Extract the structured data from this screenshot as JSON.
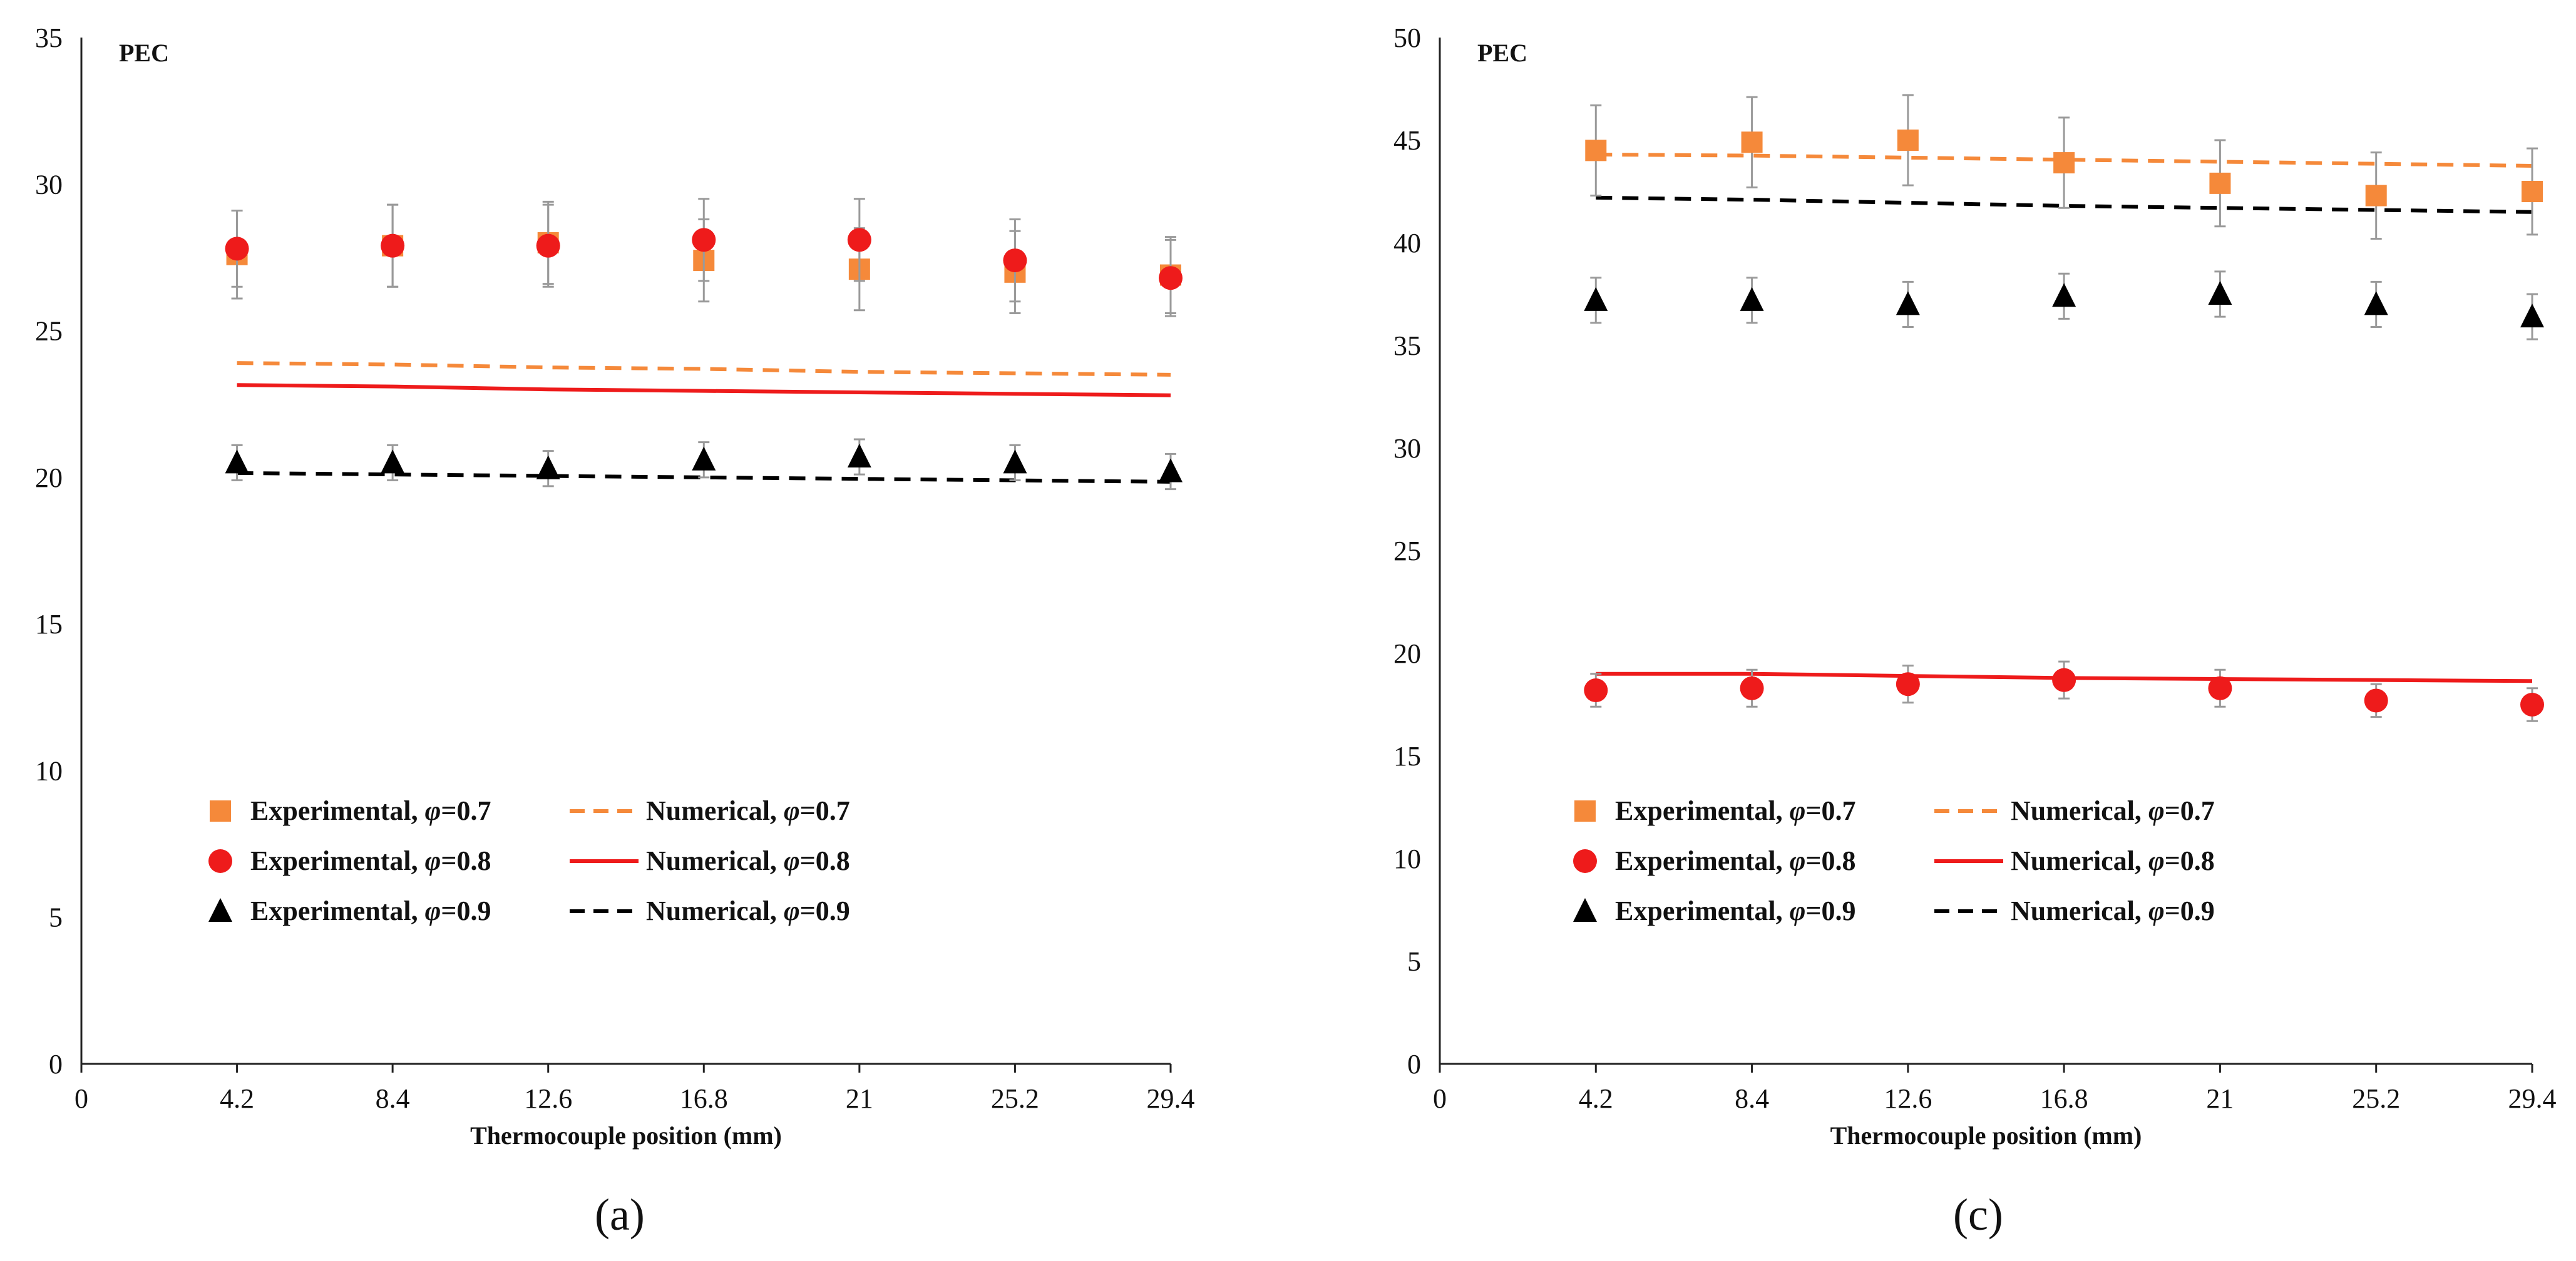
{
  "chart_data": [
    {
      "type": "line",
      "panel": "a",
      "caption": "(a)",
      "ylabel": "PEC",
      "xlabel": "Thermocouple position (mm)",
      "ylim": [
        0,
        35
      ],
      "yticks": [
        0,
        5,
        10,
        15,
        20,
        25,
        30,
        35
      ],
      "x_tick_values": [
        0,
        4.2,
        8.4,
        12.6,
        16.8,
        21,
        25.2,
        29.4
      ],
      "x_tick_labels": [
        "0",
        "4.2",
        "8.4",
        "12.6",
        "16.8",
        "21",
        "25.2",
        "29.4"
      ],
      "xlim": [
        0,
        29.4
      ],
      "legend_position": "lower-center",
      "series": [
        {
          "name": "Experimental, φ=0.7",
          "label_prefix": "Experimental, ",
          "phi": "0.7",
          "kind": "scatter",
          "marker": "square",
          "color": "#f5893a",
          "x": [
            4.2,
            8.4,
            12.6,
            16.8,
            21,
            25.2,
            29.4
          ],
          "values": [
            27.6,
            27.9,
            28.0,
            27.4,
            27.1,
            27.0,
            26.9
          ],
          "errors": [
            1.5,
            1.4,
            1.4,
            1.4,
            1.4,
            1.4,
            1.3
          ]
        },
        {
          "name": "Experimental, φ=0.8",
          "label_prefix": "Experimental, ",
          "phi": "0.8",
          "kind": "scatter",
          "marker": "circle",
          "color": "#ee1b1b",
          "x": [
            4.2,
            8.4,
            12.6,
            16.8,
            21,
            25.2,
            29.4
          ],
          "values": [
            27.8,
            27.9,
            27.9,
            28.1,
            28.1,
            27.4,
            26.8
          ],
          "errors": [
            1.3,
            1.4,
            1.4,
            1.4,
            1.4,
            1.4,
            1.3
          ]
        },
        {
          "name": "Experimental, φ=0.9",
          "label_prefix": "Experimental, ",
          "phi": "0.9",
          "kind": "scatter",
          "marker": "triangle",
          "color": "#000000",
          "x": [
            4.2,
            8.4,
            12.6,
            16.8,
            21,
            25.2,
            29.4
          ],
          "values": [
            20.5,
            20.5,
            20.3,
            20.6,
            20.7,
            20.5,
            20.2
          ],
          "errors": [
            0.6,
            0.6,
            0.6,
            0.6,
            0.6,
            0.6,
            0.6
          ]
        },
        {
          "name": "Numerical, φ=0.7",
          "label_prefix": "Numerical, ",
          "phi": "0.7",
          "kind": "line",
          "dash": "dashed",
          "color": "#f5893a",
          "x": [
            4.2,
            8.4,
            12.6,
            16.8,
            21,
            25.2,
            29.4
          ],
          "values": [
            23.9,
            23.85,
            23.75,
            23.7,
            23.6,
            23.55,
            23.5
          ]
        },
        {
          "name": "Numerical, φ=0.8",
          "label_prefix": "Numerical, ",
          "phi": "0.8",
          "kind": "line",
          "dash": "solid",
          "color": "#ee1b1b",
          "x": [
            4.2,
            8.4,
            12.6,
            16.8,
            21,
            25.2,
            29.4
          ],
          "values": [
            23.15,
            23.1,
            23.0,
            22.95,
            22.9,
            22.85,
            22.8
          ]
        },
        {
          "name": "Numerical, φ=0.9",
          "label_prefix": "Numerical, ",
          "phi": "0.9",
          "kind": "line",
          "dash": "dashed",
          "color": "#000000",
          "x": [
            4.2,
            8.4,
            12.6,
            16.8,
            21,
            25.2,
            29.4
          ],
          "values": [
            20.15,
            20.1,
            20.05,
            20.0,
            19.95,
            19.9,
            19.85
          ]
        }
      ]
    },
    {
      "type": "line",
      "panel": "c",
      "caption": "(c)",
      "ylabel": "PEC",
      "xlabel": "Thermocouple position (mm)",
      "ylim": [
        0,
        50
      ],
      "yticks": [
        0,
        5,
        10,
        15,
        20,
        25,
        30,
        35,
        40,
        45,
        50
      ],
      "x_tick_values": [
        0,
        4.2,
        8.4,
        12.6,
        16.8,
        21,
        25.2,
        29.4
      ],
      "x_tick_labels": [
        "0",
        "4.2",
        "8.4",
        "12.6",
        "16.8",
        "21",
        "25.2",
        "29.4"
      ],
      "xlim": [
        0,
        29.4
      ],
      "legend_position": "lower-center",
      "series": [
        {
          "name": "Experimental, φ=0.7",
          "label_prefix": "Experimental, ",
          "phi": "0.7",
          "kind": "scatter",
          "marker": "square",
          "color": "#f5893a",
          "x": [
            4.2,
            8.4,
            12.6,
            16.8,
            21,
            25.2,
            29.4
          ],
          "values": [
            44.5,
            44.9,
            45.0,
            43.9,
            42.9,
            42.3,
            42.5
          ],
          "errors": [
            2.2,
            2.2,
            2.2,
            2.2,
            2.1,
            2.1,
            2.1
          ]
        },
        {
          "name": "Experimental, φ=0.8",
          "label_prefix": "Experimental, ",
          "phi": "0.8",
          "kind": "scatter",
          "marker": "circle",
          "color": "#ee1b1b",
          "x": [
            4.2,
            8.4,
            12.6,
            16.8,
            21,
            25.2,
            29.4
          ],
          "values": [
            18.2,
            18.3,
            18.5,
            18.7,
            18.3,
            17.7,
            17.5
          ],
          "errors": [
            0.8,
            0.9,
            0.9,
            0.9,
            0.9,
            0.8,
            0.8
          ]
        },
        {
          "name": "Experimental, φ=0.9",
          "label_prefix": "Experimental, ",
          "phi": "0.9",
          "kind": "scatter",
          "marker": "triangle",
          "color": "#000000",
          "x": [
            4.2,
            8.4,
            12.6,
            16.8,
            21,
            25.2,
            29.4
          ],
          "values": [
            37.2,
            37.2,
            37.0,
            37.4,
            37.5,
            37.0,
            36.4
          ],
          "errors": [
            1.1,
            1.1,
            1.1,
            1.1,
            1.1,
            1.1,
            1.1
          ]
        },
        {
          "name": "Numerical, φ=0.7",
          "label_prefix": "Numerical, ",
          "phi": "0.7",
          "kind": "line",
          "dash": "dashed",
          "color": "#f5893a",
          "x": [
            4.2,
            8.4,
            12.6,
            16.8,
            21,
            25.2,
            29.4
          ],
          "values": [
            44.3,
            44.25,
            44.15,
            44.05,
            43.95,
            43.85,
            43.75
          ]
        },
        {
          "name": "Numerical, φ=0.8",
          "label_prefix": "Numerical, ",
          "phi": "0.8",
          "kind": "line",
          "dash": "solid",
          "color": "#ee1b1b",
          "x": [
            4.2,
            8.4,
            12.6,
            16.8,
            21,
            25.2,
            29.4
          ],
          "values": [
            19.0,
            19.0,
            18.9,
            18.8,
            18.75,
            18.7,
            18.65
          ]
        },
        {
          "name": "Numerical, φ=0.9",
          "label_prefix": "Numerical, ",
          "phi": "0.9",
          "kind": "line",
          "dash": "dashed",
          "color": "#000000",
          "x": [
            4.2,
            8.4,
            12.6,
            16.8,
            21,
            25.2,
            29.4
          ],
          "values": [
            42.2,
            42.1,
            41.95,
            41.8,
            41.7,
            41.6,
            41.5
          ]
        }
      ]
    }
  ]
}
